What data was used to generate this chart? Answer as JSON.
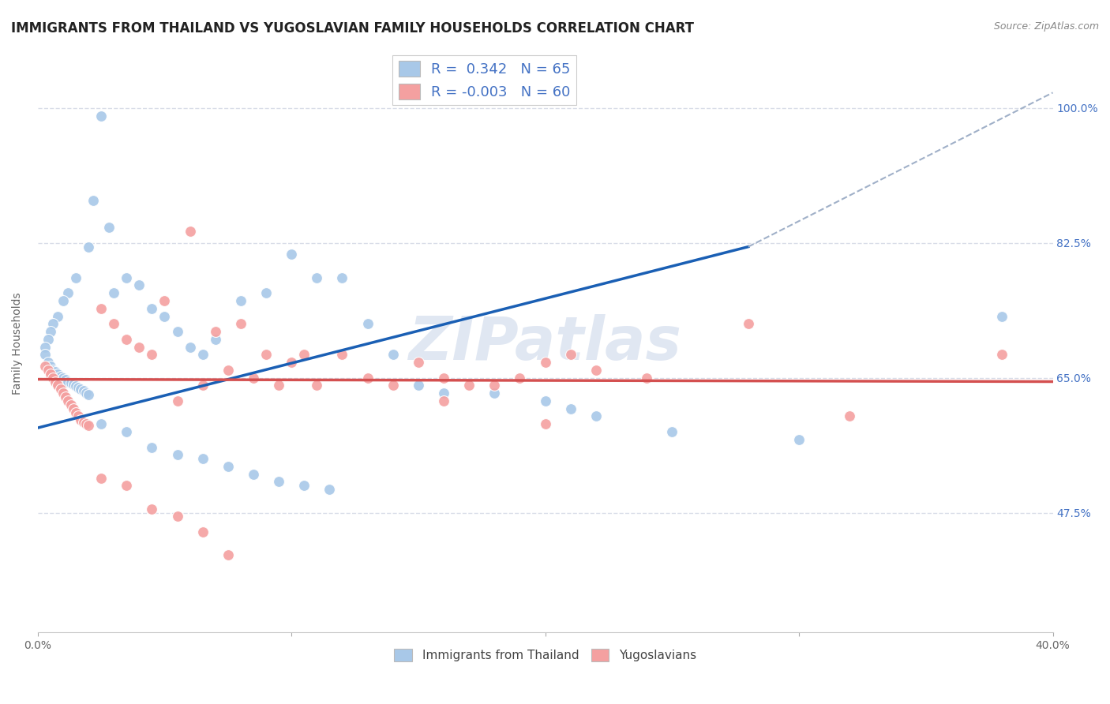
{
  "title": "IMMIGRANTS FROM THAILAND VS YUGOSLAVIAN FAMILY HOUSEHOLDS CORRELATION CHART",
  "source": "Source: ZipAtlas.com",
  "ylabel": "Family Households",
  "ylabel_ticks": [
    "47.5%",
    "65.0%",
    "82.5%",
    "100.0%"
  ],
  "ylabel_tick_vals": [
    0.475,
    0.65,
    0.825,
    1.0
  ],
  "xlim": [
    0.0,
    0.4
  ],
  "ylim": [
    0.32,
    1.07
  ],
  "blue_color": "#a8c8e8",
  "pink_color": "#f4a0a0",
  "blue_line_color": "#1a5fb4",
  "pink_line_color": "#d45050",
  "dashed_line_color": "#a0b0c8",
  "watermark": "ZIPatlas",
  "blue_scatter_x": [
    0.025,
    0.022,
    0.028,
    0.02,
    0.015,
    0.012,
    0.01,
    0.008,
    0.006,
    0.005,
    0.004,
    0.003,
    0.003,
    0.004,
    0.005,
    0.006,
    0.007,
    0.008,
    0.009,
    0.01,
    0.011,
    0.012,
    0.013,
    0.014,
    0.015,
    0.016,
    0.017,
    0.018,
    0.019,
    0.02,
    0.03,
    0.035,
    0.04,
    0.045,
    0.05,
    0.055,
    0.06,
    0.065,
    0.07,
    0.08,
    0.09,
    0.1,
    0.11,
    0.12,
    0.13,
    0.14,
    0.15,
    0.16,
    0.18,
    0.2,
    0.21,
    0.22,
    0.25,
    0.3,
    0.38,
    0.025,
    0.035,
    0.045,
    0.055,
    0.065,
    0.075,
    0.085,
    0.095,
    0.105,
    0.115
  ],
  "blue_scatter_y": [
    0.99,
    0.88,
    0.845,
    0.82,
    0.78,
    0.76,
    0.75,
    0.73,
    0.72,
    0.71,
    0.7,
    0.69,
    0.68,
    0.67,
    0.665,
    0.66,
    0.658,
    0.655,
    0.652,
    0.65,
    0.648,
    0.645,
    0.643,
    0.641,
    0.639,
    0.637,
    0.635,
    0.633,
    0.63,
    0.628,
    0.76,
    0.78,
    0.77,
    0.74,
    0.73,
    0.71,
    0.69,
    0.68,
    0.7,
    0.75,
    0.76,
    0.81,
    0.78,
    0.78,
    0.72,
    0.68,
    0.64,
    0.63,
    0.63,
    0.62,
    0.61,
    0.6,
    0.58,
    0.57,
    0.73,
    0.59,
    0.58,
    0.56,
    0.55,
    0.545,
    0.535,
    0.525,
    0.515,
    0.51,
    0.505
  ],
  "pink_scatter_x": [
    0.003,
    0.004,
    0.005,
    0.006,
    0.007,
    0.008,
    0.009,
    0.01,
    0.011,
    0.012,
    0.013,
    0.014,
    0.015,
    0.016,
    0.017,
    0.018,
    0.019,
    0.02,
    0.025,
    0.03,
    0.035,
    0.04,
    0.045,
    0.05,
    0.06,
    0.07,
    0.08,
    0.09,
    0.1,
    0.11,
    0.12,
    0.13,
    0.14,
    0.15,
    0.16,
    0.17,
    0.18,
    0.19,
    0.2,
    0.22,
    0.24,
    0.28,
    0.055,
    0.065,
    0.075,
    0.085,
    0.095,
    0.105,
    0.16,
    0.2,
    0.21,
    0.32,
    0.38,
    0.025,
    0.035,
    0.045,
    0.055,
    0.065,
    0.075
  ],
  "pink_scatter_y": [
    0.665,
    0.66,
    0.655,
    0.65,
    0.645,
    0.64,
    0.635,
    0.63,
    0.625,
    0.62,
    0.615,
    0.61,
    0.605,
    0.6,
    0.595,
    0.592,
    0.59,
    0.588,
    0.74,
    0.72,
    0.7,
    0.69,
    0.68,
    0.75,
    0.84,
    0.71,
    0.72,
    0.68,
    0.67,
    0.64,
    0.68,
    0.65,
    0.64,
    0.67,
    0.65,
    0.64,
    0.64,
    0.65,
    0.67,
    0.66,
    0.65,
    0.72,
    0.62,
    0.64,
    0.66,
    0.65,
    0.64,
    0.68,
    0.62,
    0.59,
    0.68,
    0.6,
    0.68,
    0.52,
    0.51,
    0.48,
    0.47,
    0.45,
    0.42
  ],
  "blue_line_x": [
    0.0,
    0.28
  ],
  "blue_line_y": [
    0.585,
    0.82
  ],
  "pink_line_x": [
    0.0,
    0.4
  ],
  "pink_line_y": [
    0.648,
    0.645
  ],
  "dashed_line_x": [
    0.28,
    0.4
  ],
  "dashed_line_y": [
    0.82,
    1.02
  ],
  "grid_color": "#d8dce8",
  "background_color": "#ffffff",
  "title_fontsize": 12,
  "axis_label_fontsize": 10,
  "tick_fontsize": 10,
  "legend_fontsize": 13,
  "scatter_size": 100
}
